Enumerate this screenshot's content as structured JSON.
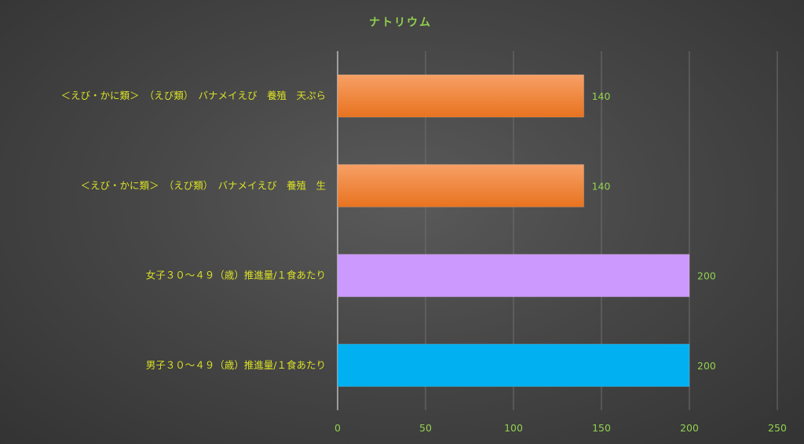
{
  "chart_data": {
    "type": "bar",
    "orientation": "horizontal",
    "title": "ナトリウム",
    "categories": [
      "＜えび・かに類＞　（えび類）　バナメイえび　養殖　天ぷら",
      "＜えび・かに類＞　（えび類）　バナメイえび　養殖　生",
      "女子３０～４９（歳）推進量/１食あたり",
      "男子３０～４９（歳）推進量/１食あたり"
    ],
    "values": [
      140,
      140,
      200,
      200
    ],
    "data_labels": [
      "140",
      "140",
      "200",
      "200"
    ],
    "bar_colors": [
      "#f07a26",
      "#f07a26",
      "#cc99ff",
      "#00b0f0"
    ],
    "xlim": [
      0,
      250
    ],
    "x_ticks": [
      0,
      50,
      100,
      150,
      200,
      250
    ],
    "x_tick_labels": [
      "0",
      "50",
      "100",
      "150",
      "200",
      "250"
    ],
    "xlabel": "",
    "ylabel": "",
    "grid": true,
    "legend": "none"
  }
}
